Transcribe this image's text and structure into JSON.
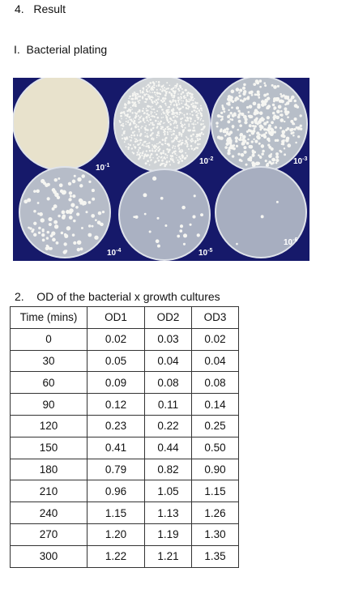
{
  "section": {
    "heading": "4.   Result"
  },
  "plating": {
    "heading": "I.  Bacterial plating",
    "labels": [
      {
        "base": "10",
        "exponent": "-1"
      },
      {
        "base": "10",
        "exponent": "-2"
      },
      {
        "base": "10",
        "exponent": "-3"
      },
      {
        "base": "10",
        "exponent": "-4"
      },
      {
        "base": "10",
        "exponent": "-5"
      },
      {
        "base": "10",
        "exponent": "-6"
      }
    ]
  },
  "od": {
    "heading": "2.    OD of the bacterial x growth cultures",
    "table": {
      "header": [
        "Time (mins)",
        "OD1",
        "OD2",
        "OD3"
      ],
      "rows": [
        [
          "0",
          "0.02",
          "0.03",
          "0.02"
        ],
        [
          "30",
          "0.05",
          "0.04",
          "0.04"
        ],
        [
          "60",
          "0.09",
          "0.08",
          "0.08"
        ],
        [
          "90",
          "0.12",
          "0.11",
          "0.14"
        ],
        [
          "120",
          "0.23",
          "0.22",
          "0.25"
        ],
        [
          "150",
          "0.41",
          "0.44",
          "0.50"
        ],
        [
          "180",
          "0.79",
          "0.82",
          "0.90"
        ],
        [
          "210",
          "0.96",
          "1.05",
          "1.15"
        ],
        [
          "240",
          "1.15",
          "1.13",
          "1.26"
        ],
        [
          "270",
          "1.20",
          "1.19",
          "1.30"
        ],
        [
          "300",
          "1.22",
          "1.21",
          "1.35"
        ]
      ]
    }
  }
}
